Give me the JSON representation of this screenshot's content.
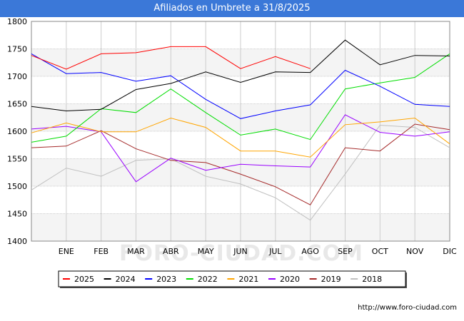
{
  "header": {
    "title": "Afiliados en Umbrete a 31/8/2025"
  },
  "footer": {
    "credit": "http://www.foro-ciudad.com"
  },
  "watermark": {
    "text": "FORO-CIUDAD.COM"
  },
  "chart_data": {
    "type": "line",
    "title": "Afiliados en Umbrete a 31/8/2025",
    "xlabel": "",
    "ylabel": "",
    "ylim": [
      1400,
      1800
    ],
    "yticks": [
      1400,
      1450,
      1500,
      1550,
      1600,
      1650,
      1700,
      1750,
      1800
    ],
    "categories": [
      "",
      "ENE",
      "FEB",
      "MAR",
      "ABR",
      "MAY",
      "JUN",
      "JUL",
      "AGO",
      "SEP",
      "OCT",
      "NOV",
      "DIC"
    ],
    "grid": true,
    "legend_position": "bottom",
    "series": [
      {
        "name": "2025",
        "color": "#ff0000",
        "values": [
          1738,
          1713,
          1741,
          1743,
          1754,
          1754,
          1714,
          1736,
          1714,
          null,
          null,
          null,
          null
        ]
      },
      {
        "name": "2024",
        "color": "#000000",
        "values": [
          1645,
          1637,
          1640,
          1676,
          1687,
          1708,
          1689,
          1708,
          1707,
          1766,
          1721,
          1738,
          1737
        ]
      },
      {
        "name": "2023",
        "color": "#0000ff",
        "values": [
          1741,
          1705,
          1707,
          1691,
          1701,
          1658,
          1623,
          1637,
          1648,
          1711,
          1682,
          1649,
          1645
        ]
      },
      {
        "name": "2022",
        "color": "#00dd00",
        "values": [
          1580,
          1591,
          1641,
          1634,
          1677,
          1634,
          1593,
          1604,
          1585,
          1677,
          1688,
          1698,
          1741
        ]
      },
      {
        "name": "2021",
        "color": "#ffa500",
        "values": [
          1597,
          1615,
          1599,
          1599,
          1624,
          1607,
          1564,
          1564,
          1553,
          1612,
          1617,
          1624,
          1577
        ]
      },
      {
        "name": "2020",
        "color": "#9900ff",
        "values": [
          1604,
          1609,
          1599,
          1508,
          1551,
          1529,
          1540,
          1537,
          1535,
          1630,
          1598,
          1591,
          1599
        ]
      },
      {
        "name": "2019",
        "color": "#a52a2a",
        "values": [
          1570,
          1573,
          1601,
          1568,
          1547,
          1543,
          1522,
          1499,
          1466,
          1570,
          1564,
          1613,
          1603
        ]
      },
      {
        "name": "2018",
        "color": "#c0c0c0",
        "values": [
          1493,
          1533,
          1518,
          1547,
          1550,
          1518,
          1504,
          1479,
          1438,
          1522,
          1611,
          1607,
          1570
        ]
      }
    ]
  }
}
